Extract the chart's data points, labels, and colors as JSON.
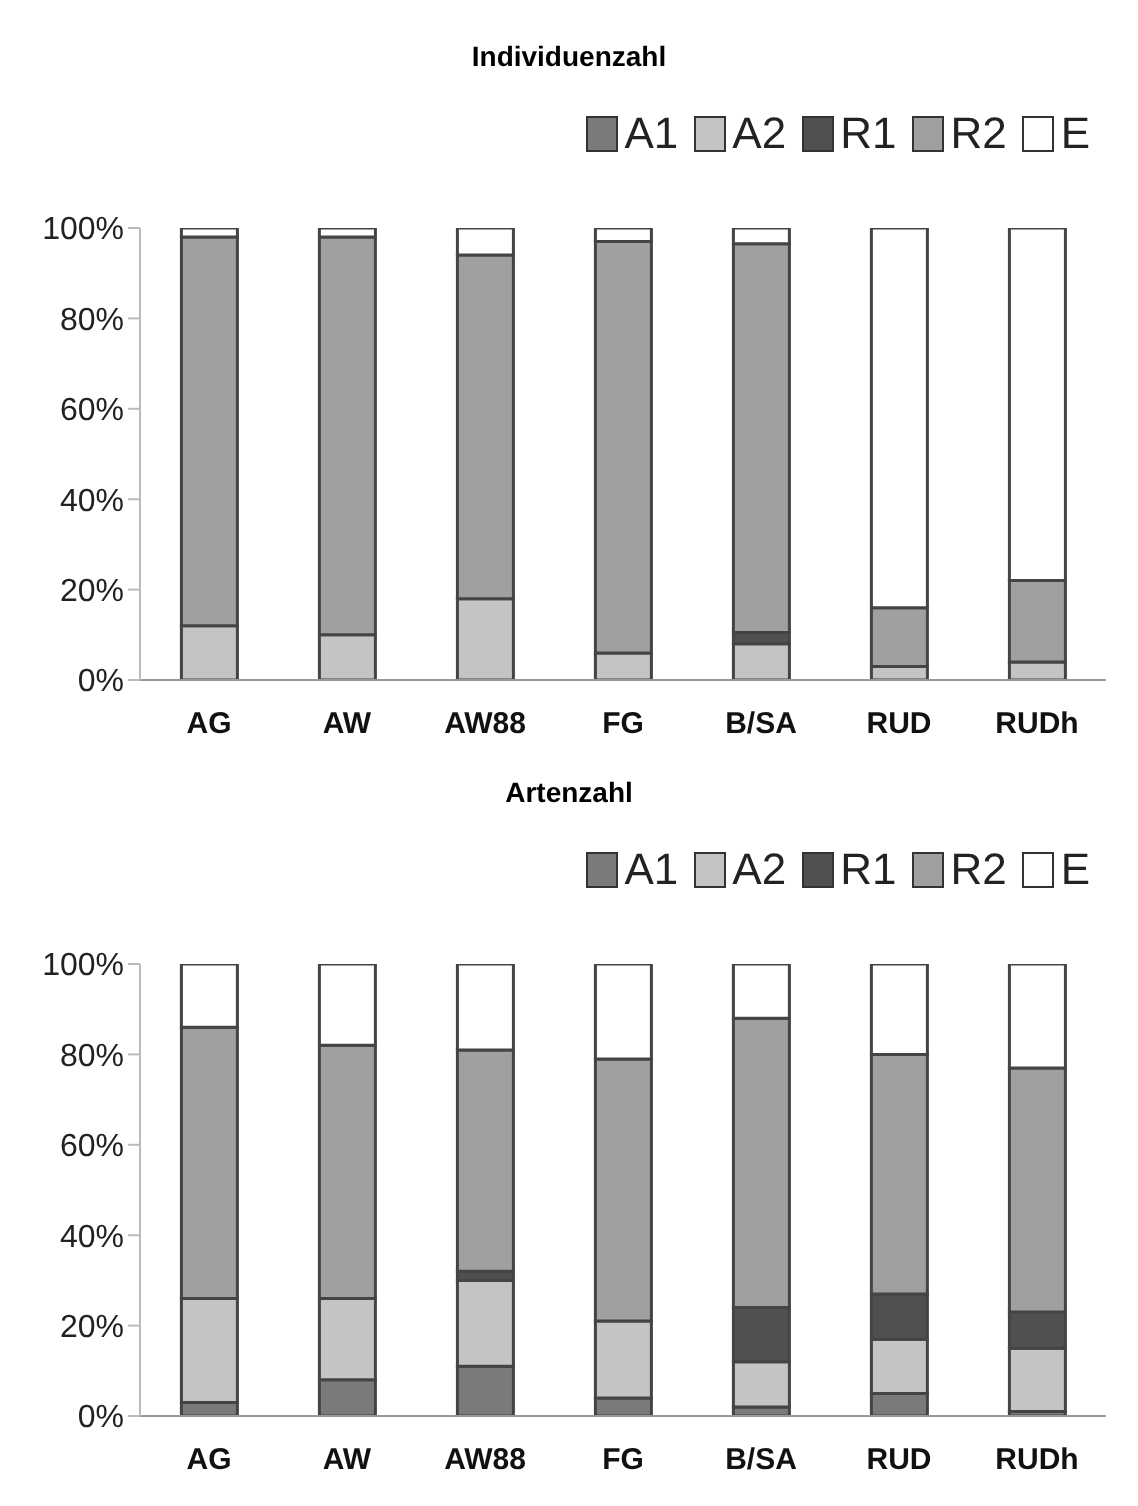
{
  "chart_data": [
    {
      "type": "bar",
      "title": "Individuenzahl",
      "stacked": true,
      "legend": "top right",
      "grid": false,
      "categories": [
        "AG",
        "AW",
        "AW88",
        "FG",
        "B/SA",
        "RUD",
        "RUDh"
      ],
      "ylim": [
        0,
        100
      ],
      "yticks": [
        {
          "value": 0,
          "label": "0%"
        },
        {
          "value": 20,
          "label": "20%"
        },
        {
          "value": 40,
          "label": "40%"
        },
        {
          "value": 60,
          "label": "60%"
        },
        {
          "value": 80,
          "label": "80%"
        },
        {
          "value": 100,
          "label": "100%"
        }
      ],
      "series": [
        {
          "name": "A1",
          "color": "#7a7a7a",
          "values": [
            0,
            0,
            0,
            0,
            0,
            0,
            0
          ]
        },
        {
          "name": "A2",
          "color": "#c4c4c4",
          "values": [
            12,
            10,
            18,
            6,
            8,
            3,
            4
          ]
        },
        {
          "name": "R1",
          "color": "#505050",
          "values": [
            0,
            0,
            0,
            0,
            2.5,
            0,
            0
          ]
        },
        {
          "name": "R2",
          "color": "#a0a0a0",
          "values": [
            86,
            88,
            76,
            91,
            86,
            13,
            18
          ]
        },
        {
          "name": "E",
          "color": "#ffffff",
          "values": [
            2,
            2,
            6,
            3,
            3.5,
            84,
            78
          ]
        }
      ]
    },
    {
      "type": "bar",
      "title": "Artenzahl",
      "stacked": true,
      "legend": "top right",
      "grid": false,
      "categories": [
        "AG",
        "AW",
        "AW88",
        "FG",
        "B/SA",
        "RUD",
        "RUDh"
      ],
      "ylim": [
        0,
        100
      ],
      "yticks": [
        {
          "value": 0,
          "label": "0%"
        },
        {
          "value": 20,
          "label": "20%"
        },
        {
          "value": 40,
          "label": "40%"
        },
        {
          "value": 60,
          "label": "60%"
        },
        {
          "value": 80,
          "label": "80%"
        },
        {
          "value": 100,
          "label": "100%"
        }
      ],
      "series": [
        {
          "name": "A1",
          "color": "#7a7a7a",
          "values": [
            3,
            8,
            11,
            4,
            2,
            5,
            1
          ]
        },
        {
          "name": "A2",
          "color": "#c4c4c4",
          "values": [
            23,
            18,
            19,
            17,
            10,
            12,
            14
          ]
        },
        {
          "name": "R1",
          "color": "#505050",
          "values": [
            0,
            0,
            2,
            0,
            12,
            10,
            8
          ]
        },
        {
          "name": "R2",
          "color": "#a0a0a0",
          "values": [
            60,
            56,
            49,
            58,
            64,
            53,
            54
          ]
        },
        {
          "name": "E",
          "color": "#ffffff",
          "values": [
            14,
            18,
            19,
            21,
            12,
            20,
            23
          ]
        }
      ]
    }
  ]
}
